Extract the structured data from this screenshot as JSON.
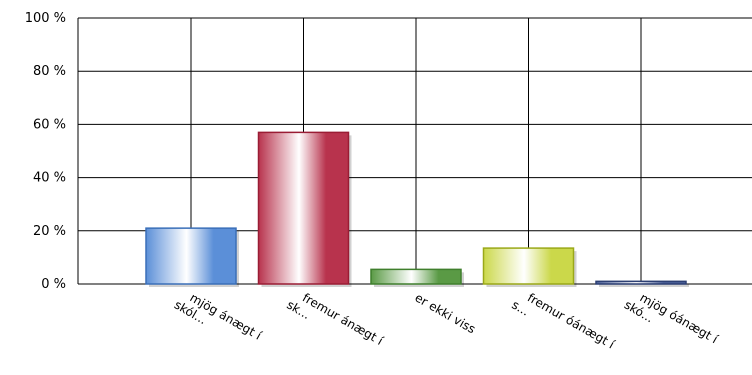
{
  "chart_data": {
    "type": "bar",
    "categories": [
      [
        "mjög ánægt í",
        "skól..."
      ],
      [
        "fremur ánægt í",
        "sk..."
      ],
      [
        "er ekki viss"
      ],
      [
        "fremur óánægt í",
        "s..."
      ],
      [
        "mjög óánægt í",
        "skó..."
      ]
    ],
    "values": [
      21,
      57,
      5.5,
      13.5,
      1
    ],
    "ylim": [
      0,
      100
    ],
    "yticks": [
      0,
      20,
      40,
      60,
      80,
      100
    ],
    "ytick_labels": [
      "0 %",
      "20 %",
      "40 %",
      "60 %",
      "80 %",
      "100 %"
    ],
    "grid": true,
    "legend": "none",
    "colors": [
      {
        "edge": "#3a6fb8",
        "light": "#ffffff",
        "dark": "#5b8fd8"
      },
      {
        "edge": "#9a1c34",
        "light": "#ffffff",
        "dark": "#b8334d"
      },
      {
        "edge": "#3f7f2d",
        "light": "#ffffff",
        "dark": "#5a9a45"
      },
      {
        "edge": "#9aa818",
        "light": "#ffffff",
        "dark": "#cbd84a"
      },
      {
        "edge": "#2c3f73",
        "light": "#ffffff",
        "dark": "#4a5f98"
      }
    ]
  }
}
